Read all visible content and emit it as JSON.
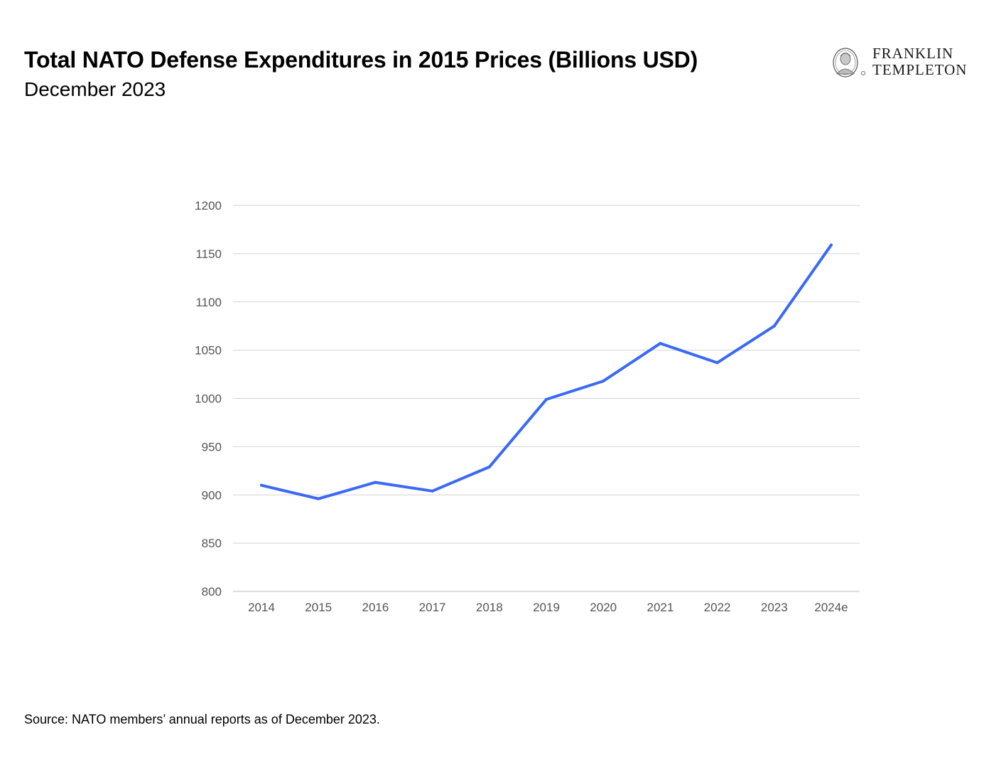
{
  "header": {
    "title": "Total NATO Defense Expenditures in 2015 Prices (Billions USD)",
    "subtitle": "December 2023"
  },
  "logo": {
    "line1": "FRANKLIN",
    "line2": "TEMPLETON",
    "icon": "franklin-portrait-icon"
  },
  "footer": {
    "source": "Source: NATO members’ annual reports as of December 2023."
  },
  "colors": {
    "line": "#3A6AF5",
    "grid": "#d3d3d3",
    "tick_text": "#555555"
  },
  "chart_data": {
    "type": "line",
    "title": "Total NATO Defense Expenditures in 2015 Prices (Billions USD)",
    "subtitle": "December 2023",
    "categories": [
      "2014",
      "2015",
      "2016",
      "2017",
      "2018",
      "2019",
      "2020",
      "2021",
      "2022",
      "2023",
      "2024e"
    ],
    "series": [
      {
        "values": [
          910,
          896,
          913,
          904,
          929,
          999,
          1018,
          1057,
          1037,
          1075,
          1159
        ]
      }
    ],
    "ylim": [
      800,
      1200
    ],
    "yticks": [
      800,
      850,
      900,
      950,
      1000,
      1050,
      1100,
      1150,
      1200
    ],
    "xlabel": "",
    "ylabel": "",
    "grid": true,
    "legend": "none"
  }
}
